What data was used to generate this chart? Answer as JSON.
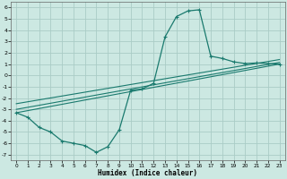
{
  "xlabel": "Humidex (Indice chaleur)",
  "xlim": [
    -0.5,
    23.5
  ],
  "ylim": [
    -7.5,
    6.5
  ],
  "xticks": [
    0,
    1,
    2,
    3,
    4,
    5,
    6,
    7,
    8,
    9,
    10,
    11,
    12,
    13,
    14,
    15,
    16,
    17,
    18,
    19,
    20,
    21,
    22,
    23
  ],
  "yticks": [
    -7,
    -6,
    -5,
    -4,
    -3,
    -2,
    -1,
    0,
    1,
    2,
    3,
    4,
    5,
    6
  ],
  "background_color": "#cce8e2",
  "grid_color": "#aaccC6",
  "line_color": "#1a7a6e",
  "curve1_x": [
    0,
    1,
    2,
    3,
    4,
    5,
    6,
    7,
    8,
    9,
    10,
    11,
    12,
    13,
    14,
    15,
    16,
    17,
    18,
    19,
    20,
    21,
    22,
    23
  ],
  "curve1_y": [
    -3.3,
    -3.7,
    -4.6,
    -5.0,
    -5.8,
    -6.0,
    -6.2,
    -6.8,
    -6.3,
    -4.8,
    -1.3,
    -1.2,
    -0.7,
    3.4,
    5.2,
    5.7,
    5.8,
    1.7,
    1.5,
    1.2,
    1.05,
    1.1,
    1.05,
    1.0
  ],
  "line1_x": [
    0,
    23
  ],
  "line1_y": [
    -3.3,
    1.0
  ],
  "line2_x": [
    0,
    23
  ],
  "line2_y": [
    -3.0,
    1.15
  ],
  "line3_x": [
    0,
    23
  ],
  "line3_y": [
    -2.5,
    1.4
  ]
}
